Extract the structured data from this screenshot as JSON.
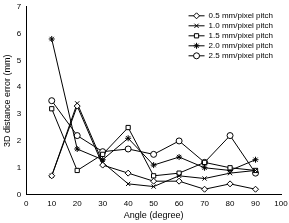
{
  "chart_data": {
    "type": "line",
    "x_label": "Angle (degree)",
    "y_label": "3D distance error (mm)",
    "x": [
      10,
      20,
      30,
      40,
      50,
      60,
      70,
      80,
      90
    ],
    "xlim": [
      0,
      100
    ],
    "xticks": [
      0,
      10,
      20,
      30,
      40,
      50,
      60,
      70,
      80,
      90,
      100
    ],
    "ylim": [
      0,
      7
    ],
    "yticks": [
      0,
      1,
      2,
      3,
      4,
      5,
      6,
      7
    ],
    "grid": false,
    "legend": "upper right",
    "series": [
      {
        "name": "0.5 mm/pixel pitch",
        "color": "#000000",
        "marker": "diamond",
        "values": [
          0.7,
          3.3,
          1.1,
          0.8,
          0.5,
          0.5,
          0.2,
          0.4,
          0.2
        ]
      },
      {
        "name": "1.0 mm/pixel pitch",
        "color": "#000000",
        "marker": "cross",
        "values": [
          0.7,
          3.4,
          1.2,
          0.4,
          0.3,
          0.7,
          0.6,
          0.8,
          0.9
        ]
      },
      {
        "name": "1.5 mm/pixel pitch",
        "color": "#000000",
        "marker": "square",
        "values": [
          3.2,
          0.9,
          1.5,
          2.5,
          0.7,
          0.8,
          1.2,
          1.0,
          0.9
        ]
      },
      {
        "name": "2.0 mm/pixel pitch",
        "color": "#000000",
        "marker": "star",
        "values": [
          5.8,
          1.7,
          1.3,
          2.1,
          1.1,
          1.4,
          1.0,
          0.9,
          1.3
        ]
      },
      {
        "name": "2.5 mm/pixel pitch",
        "color": "#000000",
        "marker": "circle",
        "values": [
          3.5,
          2.2,
          1.6,
          1.7,
          1.5,
          2.0,
          1.2,
          2.2,
          0.8
        ]
      }
    ]
  }
}
